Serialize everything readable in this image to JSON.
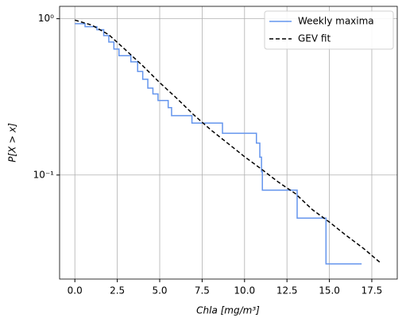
{
  "chart_data": {
    "type": "line",
    "xlabel": "Chla [mg/m³]",
    "ylabel": "P[X > x]",
    "xlim": [
      -0.9,
      19.0
    ],
    "ylim": [
      0.0216,
      1.2
    ],
    "ylog": true,
    "grid": true,
    "legend": "upper right",
    "xticks": [
      {
        "value": 0,
        "label": "0.0"
      },
      2.5,
      {
        "value": 5,
        "label": "5.0"
      },
      7.5,
      {
        "value": 10,
        "label": "10.0"
      },
      12.5,
      {
        "value": 15,
        "label": "15.0"
      },
      17.5
    ],
    "yticks": [
      {
        "value": 1,
        "label": "10⁰"
      },
      {
        "value": 0.1,
        "label": "10⁻¹"
      }
    ],
    "series": [
      {
        "name": "Weekly maxima",
        "color": "#6495ed",
        "step": "post",
        "x": [
          0,
          0.6,
          1.3,
          1.7,
          2.0,
          2.3,
          2.6,
          3.3,
          3.7,
          4.0,
          4.3,
          4.6,
          4.9,
          5.5,
          5.7,
          6.9,
          8.7,
          10.7,
          10.9,
          11.0,
          11.05,
          13.1,
          14.8,
          16.9
        ],
        "values": [
          0.93,
          0.89,
          0.85,
          0.78,
          0.71,
          0.64,
          0.58,
          0.53,
          0.46,
          0.41,
          0.36,
          0.33,
          0.3,
          0.27,
          0.24,
          0.215,
          0.185,
          0.16,
          0.13,
          0.105,
          0.08,
          0.053,
          0.027,
          0.027
        ]
      },
      {
        "name": "GEV fit",
        "color": "#000000",
        "dash": true,
        "x": [
          0,
          1,
          2,
          3,
          4,
          5,
          6,
          7,
          8,
          9,
          10,
          11,
          12,
          13,
          14,
          15,
          16,
          17,
          18
        ],
        "values": [
          0.98,
          0.91,
          0.79,
          0.63,
          0.5,
          0.39,
          0.31,
          0.243,
          0.195,
          0.16,
          0.131,
          0.109,
          0.09,
          0.076,
          0.06,
          0.05,
          0.041,
          0.034,
          0.0275
        ]
      }
    ]
  }
}
